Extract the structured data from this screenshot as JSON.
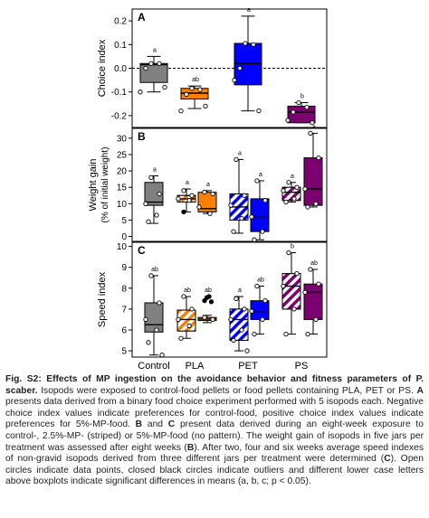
{
  "chart_data": [
    {
      "panel": "A",
      "type": "box",
      "ylabel": "Choice index",
      "ylim": [
        -0.25,
        0.25
      ],
      "yticks": [
        -0.2,
        -0.1,
        0.0,
        0.1,
        0.2
      ],
      "ytick_labels": [
        "-0.2",
        "-0.1",
        "0.0",
        "0.1",
        "0.2"
      ],
      "reference_line": 0,
      "boxes": [
        {
          "group": "Control",
          "treatment": "control",
          "color": "#808080",
          "q1": -0.06,
          "median": 0.015,
          "q3": 0.02,
          "whisker_low": -0.1,
          "whisker_high": 0.05,
          "points": [
            0.02,
            0.02,
            0.0,
            -0.08,
            -0.1
          ],
          "letter": "a"
        },
        {
          "group": "PLA",
          "treatment": "5%",
          "color": "#ff8000",
          "q1": -0.13,
          "median": -0.105,
          "q3": -0.085,
          "whisker_low": -0.17,
          "whisker_high": -0.075,
          "points": [
            -0.085,
            -0.09,
            -0.11,
            -0.16,
            -0.18
          ],
          "letter": "ab"
        },
        {
          "group": "PET",
          "treatment": "5%",
          "color": "#0000ff",
          "q1": -0.07,
          "median": 0.02,
          "q3": 0.105,
          "whisker_low": -0.18,
          "whisker_high": 0.22,
          "points": [
            0.105,
            0.1,
            0.0,
            -0.18,
            -0.05
          ],
          "letter": "a"
        },
        {
          "group": "PS",
          "treatment": "5%",
          "color": "#7b0070",
          "q1": -0.23,
          "median": -0.185,
          "q3": -0.16,
          "whisker_low": -0.23,
          "whisker_high": -0.145,
          "points": [
            -0.145,
            -0.165,
            -0.185,
            -0.23,
            -0.22
          ],
          "letter": "b"
        }
      ]
    },
    {
      "panel": "B",
      "type": "box",
      "ylabel": "Weight gain",
      "ylabel2": "(% of initial weight)",
      "ylim": [
        -1.5,
        33
      ],
      "yticks": [
        0,
        5,
        10,
        15,
        20,
        25,
        30
      ],
      "ytick_labels": [
        "0",
        "5",
        "10",
        "15",
        "20",
        "25",
        "30"
      ],
      "boxes": [
        {
          "group": "Control",
          "treatment": "control",
          "color": "#808080",
          "q1": 9.5,
          "median": 10.5,
          "q3": 16.5,
          "whisker_low": 4,
          "whisker_high": 18.5,
          "points": [
            18,
            13,
            10,
            6.5,
            4.5
          ],
          "letter": "a"
        },
        {
          "group": "PLA",
          "treatment": "2.5%",
          "color": "#ff8000",
          "q1": 10.5,
          "median": 11.5,
          "q3": 12.5,
          "whisker_low": 7.5,
          "whisker_high": 14.5,
          "points": [
            14,
            12.5,
            11.5,
            11
          ],
          "outliers": [
            7.5
          ],
          "letter": "a"
        },
        {
          "group": "PLA",
          "treatment": "5%",
          "color": "#ff8000",
          "q1": 7.5,
          "median": 8.5,
          "q3": 13.5,
          "whisker_low": 7,
          "whisker_high": 14,
          "points": [
            13.5,
            13,
            9,
            7
          ],
          "letter": "a"
        },
        {
          "group": "PET",
          "treatment": "2.5%",
          "color": "#0000ff",
          "q1": 5,
          "median": 9,
          "q3": 13,
          "whisker_low": 1,
          "whisker_high": 23.5,
          "points": [
            23.5,
            12.5,
            9.5,
            5.5,
            1.5
          ],
          "letter": "a"
        },
        {
          "group": "PET",
          "treatment": "5%",
          "color": "#0000ff",
          "q1": 1.5,
          "median": 6,
          "q3": 11.5,
          "whisker_low": -1,
          "whisker_high": 17,
          "points": [
            17,
            11,
            6,
            1.5,
            -1
          ],
          "letter": "a"
        },
        {
          "group": "PS",
          "treatment": "2.5%",
          "color": "#7b0070",
          "q1": 11,
          "median": 13.5,
          "q3": 15,
          "whisker_low": 10.5,
          "whisker_high": 16.5,
          "points": [
            16.5,
            15,
            14,
            11.5,
            10.5
          ],
          "letter": "a"
        },
        {
          "group": "PS",
          "treatment": "5%",
          "color": "#7b0070",
          "q1": 9.5,
          "median": 14.5,
          "q3": 24,
          "whisker_low": 9,
          "whisker_high": 31.5,
          "points": [
            31.5,
            24,
            14.5,
            10,
            9
          ],
          "letter": "a"
        }
      ]
    },
    {
      "panel": "C",
      "type": "box",
      "ylabel": "Speed index",
      "ylim": [
        4.7,
        10.2
      ],
      "yticks": [
        5,
        6,
        7,
        8,
        9,
        10
      ],
      "ytick_labels": [
        "5",
        "6",
        "7",
        "8",
        "9",
        "10"
      ],
      "boxes": [
        {
          "group": "Control",
          "treatment": "control",
          "color": "#808080",
          "q1": 5.9,
          "median": 6.25,
          "q3": 7.3,
          "whisker_low": 4.8,
          "whisker_high": 8.6,
          "points": [
            8.6,
            7.3,
            6.5,
            6.0,
            5.4,
            4.8
          ],
          "letter": "ab"
        },
        {
          "group": "PLA",
          "treatment": "2.5%",
          "color": "#ff8000",
          "q1": 5.95,
          "median": 6.5,
          "q3": 6.95,
          "whisker_low": 5.6,
          "whisker_high": 7.6,
          "points": [
            7.6,
            7.0,
            6.5,
            6.2,
            5.6
          ],
          "letter": "ab"
        },
        {
          "group": "PLA",
          "treatment": "5%",
          "color": "#ff8000",
          "q1": 6.45,
          "median": 6.52,
          "q3": 6.6,
          "whisker_low": 6.35,
          "whisker_high": 6.7,
          "points": [
            6.6,
            6.5
          ],
          "outliers": [
            7.4,
            7.55,
            7.6,
            7.35
          ],
          "letter": "ab"
        },
        {
          "group": "PET",
          "treatment": "2.5%",
          "color": "#0000ff",
          "q1": 5.5,
          "median": 6.5,
          "q3": 7.0,
          "whisker_low": 5.0,
          "whisker_high": 7.6,
          "points": [
            7.5,
            7.0,
            6.5,
            6.0,
            5.5,
            5.0
          ],
          "letter": "a"
        },
        {
          "group": "PET",
          "treatment": "5%",
          "color": "#0000ff",
          "q1": 6.5,
          "median": 6.85,
          "q3": 7.4,
          "whisker_low": 5.8,
          "whisker_high": 8.1,
          "points": [
            8.1,
            7.4,
            6.9,
            6.5,
            5.8
          ],
          "letter": "ab"
        },
        {
          "group": "PS",
          "treatment": "2.5%",
          "color": "#7b0070",
          "q1": 7.0,
          "median": 8.1,
          "q3": 8.7,
          "whisker_low": 5.8,
          "whisker_high": 9.7,
          "points": [
            9.7,
            8.7,
            8.1,
            7.0,
            5.8
          ],
          "letter": "b"
        },
        {
          "group": "PS",
          "treatment": "5%",
          "color": "#7b0070",
          "q1": 6.5,
          "median": 7.8,
          "q3": 8.2,
          "whisker_low": 5.8,
          "whisker_high": 8.9,
          "points": [
            8.9,
            8.2,
            7.8,
            6.5,
            5.8
          ],
          "letter": "ab"
        }
      ]
    }
  ],
  "group_labels": [
    "Control",
    "PLA",
    "PET",
    "PS"
  ],
  "caption": {
    "title": "Fig. S2: Effects of MP ingestion on the avoidance behavior and fitness parameters of P. scaber.",
    "text_1": "Isopods were exposed to control-food pellets or food pellets containing PLA, PET or PS.",
    "label_A": "A",
    "text_2": "presents data derived from a binary food choice experiment performed with 5 isopods each. Negative choice index values indicate preferences for control-food, positive choice index values indicate preferences for 5%-MP-food.",
    "label_B": "B",
    "text_3": "and",
    "label_C": "C",
    "text_4": "present data derived during an eight-week exposure to control-, 2.5%-MP- (striped) or 5%-MP-food (no pattern). The weight gain of isopods in five jars per treatment was assessed after eight weeks (",
    "label_B2": "B",
    "text_5": "). After two, four and six weeks average speed indexes of non-gravid isopods derived from three different jars per treatment were determined (",
    "label_C2": "C",
    "text_6": "). Open circles indicate data points, closed black circles indicate outliers and different lower case letters above boxplots indicate significant differences in means (a, b, c; p < 0.05)."
  }
}
